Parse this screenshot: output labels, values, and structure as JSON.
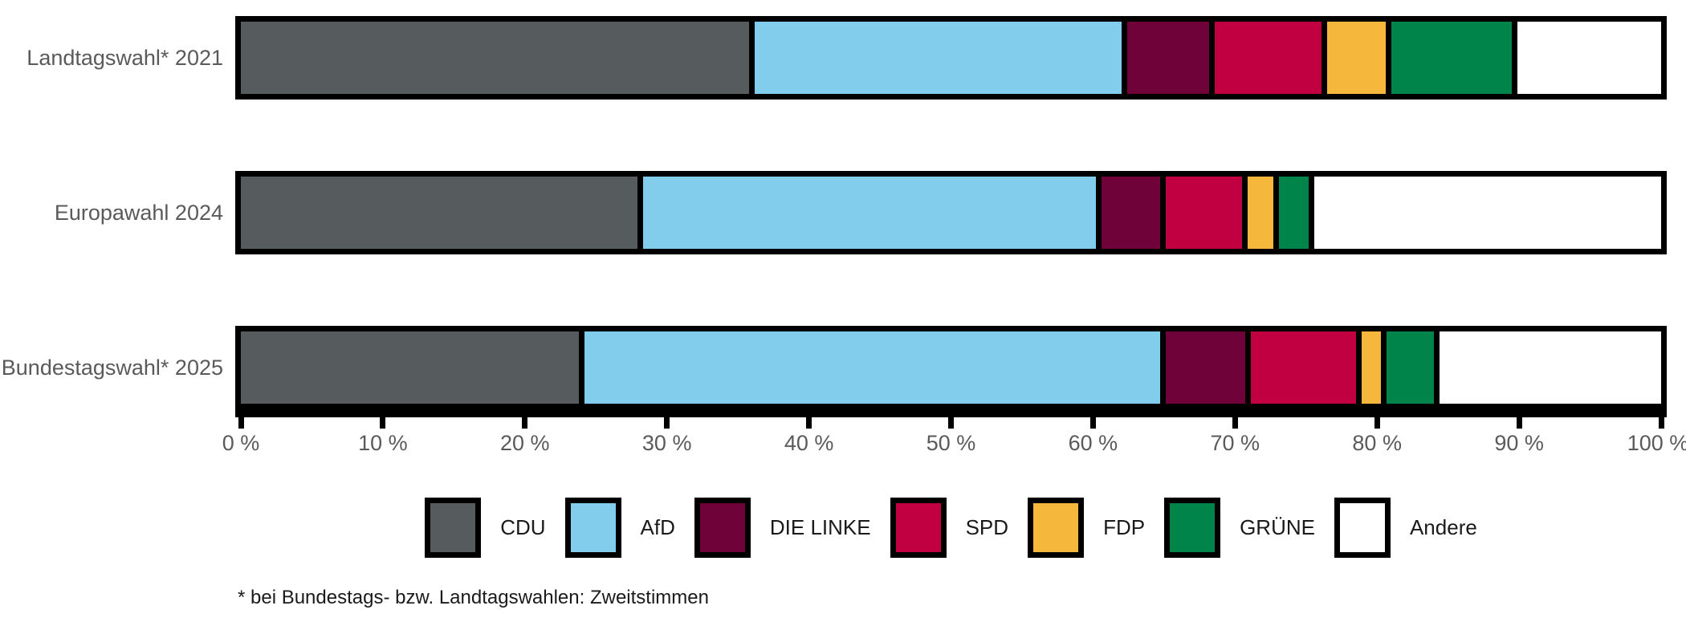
{
  "chart_data": {
    "type": "bar",
    "orientation": "horizontal",
    "stacked": true,
    "unit": "%",
    "categories": [
      "Landtagswahl* 2021",
      "Europawahl 2024",
      "Bundestagswahl* 2025"
    ],
    "series": [
      {
        "name": "CDU",
        "color": "#565C5E",
        "values": [
          35.8,
          27.9,
          23.8
        ]
      },
      {
        "name": "AfD",
        "color": "#82CCEC",
        "values": [
          26.2,
          32.3,
          40.9
        ]
      },
      {
        "name": "DIE LINKE",
        "color": "#6F0339",
        "values": [
          6.2,
          4.5,
          6.0
        ]
      },
      {
        "name": "SPD",
        "color": "#C00040",
        "values": [
          7.9,
          5.8,
          7.8
        ]
      },
      {
        "name": "FDP",
        "color": "#F5B83D",
        "values": [
          4.5,
          2.2,
          1.8
        ]
      },
      {
        "name": "GRÜNE",
        "color": "#008449",
        "values": [
          8.9,
          2.5,
          3.7
        ]
      },
      {
        "name": "Andere",
        "color": "#FFFFFF",
        "values": [
          10.5,
          24.8,
          16.0
        ]
      }
    ],
    "xlim": [
      0,
      100
    ],
    "x_tick_values": [
      0,
      10,
      20,
      30,
      40,
      50,
      60,
      70,
      80,
      90,
      100
    ],
    "x_tick_labels": [
      "0 %",
      "10 %",
      "20 %",
      "30 %",
      "40 %",
      "50 %",
      "60 %",
      "70 %",
      "80 %",
      "90 %",
      "100 %"
    ],
    "grid": false,
    "legend_position": "bottom",
    "footnote": "* bei Bundestags- bzw. Landtagswahlen: Zweitstimmen"
  },
  "style_colors": {
    "background": "#FFFFFF",
    "bar_border": "#000000",
    "axis": "#000000",
    "axis_label": "#5A5A5A",
    "legend_label": "#1A1A1A"
  }
}
